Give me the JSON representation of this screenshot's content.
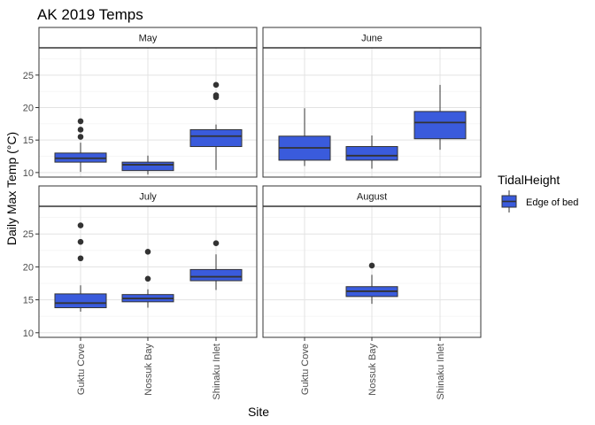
{
  "chart_data": {
    "type": "boxplot",
    "title": "AK 2019 Temps",
    "xlabel": "Site",
    "ylabel": "Daily Max Temp (°C)",
    "sites": [
      "Guktu Cove",
      "Nossuk Bay",
      "Shinaku Inlet"
    ],
    "y_ticks": [
      10,
      15,
      20,
      25
    ],
    "grid": true,
    "legend": {
      "title": "TidalHeight",
      "entries": [
        {
          "label": "Edge of bed",
          "color": "#3a5bdc"
        }
      ],
      "position": "right"
    },
    "fill_color": "#3a5bdc",
    "facets": [
      {
        "label": "May",
        "ylim": [
          9.3,
          29.2
        ],
        "boxes": [
          {
            "site": "Guktu Cove",
            "whisker_low": 10.1,
            "q1": 11.6,
            "median": 12.2,
            "q3": 13.0,
            "whisker_high": 14.6,
            "outliers": [
              15.5,
              16.6,
              17.9
            ]
          },
          {
            "site": "Nossuk Bay",
            "whisker_low": 9.7,
            "q1": 10.3,
            "median": 11.2,
            "q3": 11.6,
            "whisker_high": 12.6,
            "outliers": []
          },
          {
            "site": "Shinaku Inlet",
            "whisker_low": 10.4,
            "q1": 14.0,
            "median": 15.6,
            "q3": 16.6,
            "whisker_high": 17.4,
            "outliers": [
              21.6,
              21.9,
              23.5
            ]
          }
        ]
      },
      {
        "label": "June",
        "ylim": [
          9.3,
          29.2
        ],
        "boxes": [
          {
            "site": "Guktu Cove",
            "whisker_low": 11.0,
            "q1": 11.9,
            "median": 13.8,
            "q3": 15.6,
            "whisker_high": 19.9,
            "outliers": []
          },
          {
            "site": "Nossuk Bay",
            "whisker_low": 10.6,
            "q1": 11.9,
            "median": 12.6,
            "q3": 14.0,
            "whisker_high": 15.7,
            "outliers": []
          },
          {
            "site": "Shinaku Inlet",
            "whisker_low": 13.5,
            "q1": 15.2,
            "median": 17.7,
            "q3": 19.4,
            "whisker_high": 23.5,
            "outliers": []
          }
        ]
      },
      {
        "label": "July",
        "ylim": [
          9.3,
          29.2
        ],
        "boxes": [
          {
            "site": "Guktu Cove",
            "whisker_low": 13.2,
            "q1": 13.8,
            "median": 14.5,
            "q3": 15.9,
            "whisker_high": 17.2,
            "outliers": [
              21.3,
              23.8,
              26.3
            ]
          },
          {
            "site": "Nossuk Bay",
            "whisker_low": 13.8,
            "q1": 14.7,
            "median": 15.2,
            "q3": 15.8,
            "whisker_high": 16.6,
            "outliers": [
              18.2,
              22.3
            ]
          },
          {
            "site": "Shinaku Inlet",
            "whisker_low": 16.5,
            "q1": 17.9,
            "median": 18.5,
            "q3": 19.6,
            "whisker_high": 21.9,
            "outliers": [
              23.6
            ]
          }
        ]
      },
      {
        "label": "August",
        "ylim": [
          9.3,
          29.2
        ],
        "boxes": [
          {
            "site": "Nossuk Bay",
            "whisker_low": 14.4,
            "q1": 15.5,
            "median": 16.3,
            "q3": 17.0,
            "whisker_high": 18.8,
            "outliers": [
              20.2
            ]
          }
        ]
      }
    ]
  }
}
